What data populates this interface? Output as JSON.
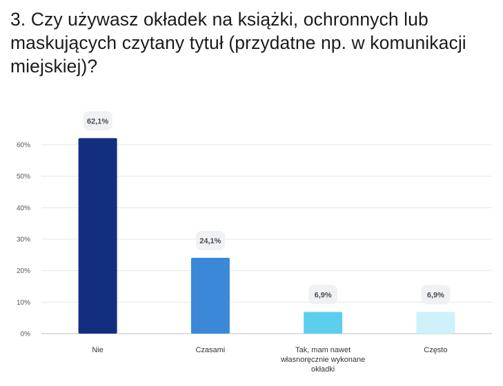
{
  "title": "3. Czy używasz okładek na książki, ochronnych lub maskujących czytany tytuł (przydatne np. w komunikacji miejskiej)?",
  "chart_data": {
    "type": "bar",
    "categories": [
      [
        "Nie"
      ],
      [
        "Czasami"
      ],
      [
        "Tak, mam nawet",
        "własnoręcznie wykonane",
        "okładki"
      ],
      [
        "Często"
      ]
    ],
    "values": [
      62.1,
      24.1,
      6.9,
      6.9
    ],
    "value_labels": [
      "62,1%",
      "24,1%",
      "6,9%",
      "6,9%"
    ],
    "colors": [
      "#142e7f",
      "#3b88d8",
      "#5ccfee",
      "#cdf2fb"
    ],
    "yticks": [
      0,
      10,
      20,
      30,
      40,
      50,
      60
    ],
    "ytick_labels": [
      "0%",
      "10%",
      "20%",
      "30%",
      "40%",
      "50%",
      "60%"
    ],
    "ylim": [
      0,
      60
    ],
    "grid": true
  }
}
